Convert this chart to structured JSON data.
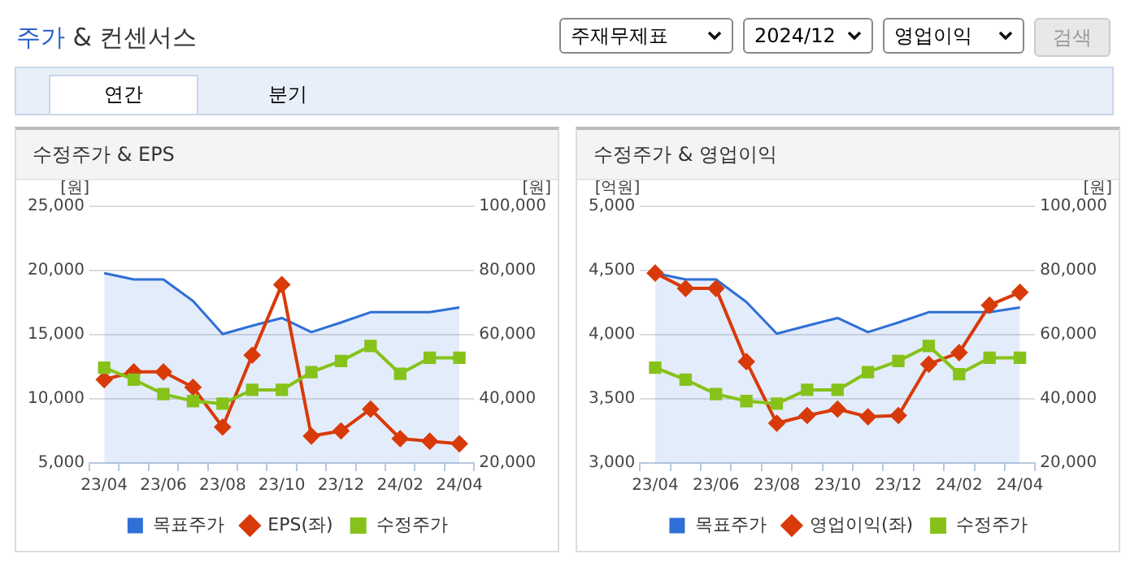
{
  "chart_data": [
    {
      "type": "other",
      "title": "주가 & 컨센서스",
      "annotations": [
        "주재무제표",
        "2024/12",
        "영업이익",
        "검색",
        "연간",
        "분기"
      ]
    },
    {
      "type": "line",
      "title": "수정주가 & EPS",
      "ylabel": "[원]",
      "y2label": "[원]",
      "categories": [
        "23/04",
        null,
        "23/06",
        null,
        "23/08",
        null,
        "23/10",
        null,
        "23/12",
        null,
        "24/02",
        null,
        "24/04"
      ],
      "series": [
        {
          "name": "목표주가",
          "type": "area",
          "axis": "y2",
          "color": "#2f6fd6",
          "marker": "none",
          "values": [
            79200,
            77200,
            77200,
            70500,
            60200,
            62800,
            65200,
            60800,
            63800,
            67000,
            67000,
            67000,
            68500
          ]
        },
        {
          "name": "EPS(좌)",
          "type": "line",
          "color": "#d83a0a",
          "marker": "diamond",
          "values": [
            11500,
            12100,
            12100,
            10900,
            7800,
            13400,
            18900,
            7100,
            7500,
            9200,
            6900,
            6700,
            6500
          ]
        },
        {
          "name": "수정주가",
          "type": "line",
          "axis": "y2",
          "color": "#86c21a",
          "marker": "square",
          "values": [
            49700,
            46000,
            41500,
            39300,
            38500,
            42800,
            42800,
            48300,
            51800,
            56500,
            47800,
            52800,
            52800
          ]
        }
      ],
      "ylim": [
        5000,
        25000
      ],
      "yticks": [
        {
          "value": 5000,
          "label": "5,000"
        },
        {
          "value": 10000,
          "label": "10,000"
        },
        {
          "value": 15000,
          "label": "15,000"
        },
        {
          "value": 20000,
          "label": "20,000"
        },
        {
          "value": 25000,
          "label": "25,000"
        }
      ],
      "y2lim": [
        20000,
        100000
      ],
      "y2ticks": [
        {
          "value": 20000,
          "label": "20,000"
        },
        {
          "value": 40000,
          "label": "40,000"
        },
        {
          "value": 60000,
          "label": "60,000"
        },
        {
          "value": 80000,
          "label": "80,000"
        },
        {
          "value": 100000,
          "label": "100,000"
        }
      ],
      "grid": "y",
      "legend": "bottom"
    },
    {
      "type": "line",
      "title": "수정주가 & 영업이익",
      "ylabel": "[억원]",
      "y2label": "[원]",
      "categories": [
        "23/04",
        null,
        "23/06",
        null,
        "23/08",
        null,
        "23/10",
        null,
        "23/12",
        null,
        "24/02",
        null,
        "24/04"
      ],
      "series": [
        {
          "name": "목표주가",
          "type": "area",
          "axis": "y2",
          "color": "#2f6fd6",
          "marker": "none",
          "values": [
            79200,
            77200,
            77200,
            70200,
            60300,
            62800,
            65200,
            60800,
            63800,
            67000,
            67000,
            67000,
            68500
          ]
        },
        {
          "name": "영업이익(좌)",
          "type": "line",
          "color": "#d83a0a",
          "marker": "diamond",
          "values": [
            4480,
            4360,
            4360,
            3790,
            3310,
            3370,
            3420,
            3360,
            3370,
            3770,
            3860,
            4230,
            4330
          ]
        },
        {
          "name": "수정주가",
          "type": "line",
          "axis": "y2",
          "color": "#86c21a",
          "marker": "square",
          "values": [
            49700,
            46000,
            41500,
            39300,
            38500,
            42800,
            42800,
            48300,
            51800,
            56500,
            47700,
            52800,
            52800
          ]
        }
      ],
      "ylim": [
        3000,
        5000
      ],
      "yticks": [
        {
          "value": 3000,
          "label": "3,000"
        },
        {
          "value": 3500,
          "label": "3,500"
        },
        {
          "value": 4000,
          "label": "4,000"
        },
        {
          "value": 4500,
          "label": "4,500"
        },
        {
          "value": 5000,
          "label": "5,000"
        }
      ],
      "y2lim": [
        20000,
        100000
      ],
      "y2ticks": [
        {
          "value": 20000,
          "label": "20,000"
        },
        {
          "value": 40000,
          "label": "40,000"
        },
        {
          "value": 60000,
          "label": "60,000"
        },
        {
          "value": 80000,
          "label": "80,000"
        },
        {
          "value": 100000,
          "label": "100,000"
        }
      ],
      "grid": "y",
      "legend": "bottom"
    }
  ]
}
